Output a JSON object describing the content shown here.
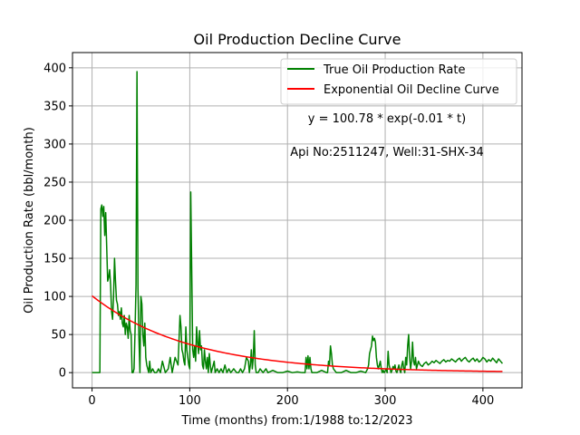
{
  "chart_data": {
    "type": "line",
    "title": "Oil Production Decline Curve",
    "xlabel": "Time (months) from:1/1988 to:12/2023",
    "ylabel": "Oil Production Rate (bbl/month)",
    "xlim": [
      -20,
      440
    ],
    "ylim": [
      -20,
      420
    ],
    "xticks": [
      0,
      100,
      200,
      300,
      400
    ],
    "yticks": [
      0,
      50,
      100,
      150,
      200,
      250,
      300,
      350,
      400
    ],
    "grid": true,
    "legend_placement": "top-right",
    "annotations": [
      "y = 100.78 * exp(-0.01 * t)",
      "Api No:2511247, Well:31-SHX-34"
    ],
    "series": [
      {
        "name": "True Oil Production Rate",
        "color": "#008000",
        "x": [
          0,
          1,
          2,
          3,
          4,
          5,
          6,
          7,
          8,
          9,
          10,
          11,
          12,
          13,
          14,
          15,
          16,
          17,
          18,
          19,
          20,
          21,
          22,
          23,
          24,
          25,
          26,
          27,
          28,
          29,
          30,
          31,
          32,
          33,
          34,
          35,
          36,
          37,
          38,
          39,
          40,
          41,
          42,
          43,
          44,
          45,
          46,
          47,
          48,
          49,
          50,
          51,
          52,
          53,
          54,
          55,
          56,
          57,
          58,
          59,
          60,
          62,
          64,
          66,
          68,
          70,
          72,
          75,
          78,
          80,
          82,
          85,
          88,
          90,
          91,
          92,
          93,
          94,
          95,
          96,
          97,
          98,
          99,
          100,
          101,
          102,
          103,
          104,
          105,
          106,
          107,
          108,
          109,
          110,
          111,
          112,
          113,
          114,
          115,
          116,
          117,
          118,
          119,
          120,
          121,
          122,
          123,
          124,
          125,
          126,
          128,
          130,
          132,
          134,
          136,
          138,
          140,
          142,
          145,
          148,
          150,
          152,
          154,
          156,
          158,
          160,
          161,
          162,
          163,
          164,
          165,
          166,
          167,
          168,
          170,
          172,
          175,
          178,
          180,
          185,
          190,
          195,
          200,
          205,
          210,
          215,
          218,
          219,
          220,
          221,
          222,
          223,
          224,
          225,
          230,
          235,
          240,
          241,
          242,
          243,
          244,
          245,
          246,
          247,
          250,
          255,
          260,
          265,
          270,
          275,
          280,
          282,
          283,
          284,
          285,
          286,
          287,
          288,
          289,
          290,
          291,
          292,
          293,
          294,
          295,
          296,
          297,
          298,
          299,
          300,
          301,
          302,
          303,
          304,
          305,
          306,
          307,
          308,
          309,
          310,
          311,
          312,
          313,
          314,
          315,
          316,
          317,
          318,
          319,
          320,
          321,
          322,
          323,
          324,
          325,
          326,
          327,
          328,
          329,
          330,
          331,
          332,
          333,
          334,
          335,
          336,
          338,
          340,
          342,
          344,
          346,
          348,
          350,
          352,
          354,
          356,
          358,
          360,
          362,
          364,
          366,
          368,
          370,
          372,
          374,
          376,
          378,
          380,
          382,
          384,
          386,
          388,
          390,
          392,
          394,
          396,
          398,
          400,
          402,
          404,
          406,
          408,
          410,
          412,
          414,
          416,
          418,
          420
        ],
        "y": [
          0,
          0,
          0,
          0,
          0,
          0,
          0,
          0,
          0,
          215,
          220,
          205,
          218,
          180,
          210,
          165,
          120,
          125,
          135,
          115,
          80,
          70,
          100,
          150,
          120,
          95,
          90,
          75,
          80,
          70,
          85,
          65,
          60,
          75,
          50,
          65,
          60,
          45,
          75,
          55,
          50,
          0,
          0,
          5,
          55,
          115,
          395,
          110,
          45,
          0,
          100,
          90,
          50,
          35,
          65,
          20,
          10,
          5,
          0,
          15,
          0,
          5,
          0,
          0,
          5,
          0,
          15,
          0,
          5,
          20,
          0,
          20,
          10,
          75,
          60,
          30,
          25,
          15,
          10,
          60,
          30,
          20,
          10,
          5,
          237,
          135,
          30,
          20,
          35,
          15,
          60,
          40,
          25,
          55,
          30,
          35,
          10,
          5,
          30,
          15,
          5,
          20,
          0,
          25,
          10,
          0,
          5,
          10,
          15,
          0,
          5,
          0,
          5,
          0,
          10,
          0,
          5,
          0,
          5,
          0,
          0,
          5,
          0,
          5,
          20,
          15,
          0,
          10,
          30,
          5,
          20,
          55,
          10,
          0,
          0,
          5,
          0,
          5,
          0,
          3,
          0,
          0,
          2,
          0,
          1,
          0,
          0,
          20,
          5,
          22,
          5,
          20,
          5,
          0,
          0,
          3,
          0,
          0,
          15,
          10,
          35,
          25,
          10,
          5,
          0,
          0,
          3,
          0,
          0,
          2,
          0,
          5,
          10,
          25,
          30,
          35,
          48,
          42,
          45,
          40,
          20,
          10,
          5,
          10,
          15,
          5,
          0,
          3,
          0,
          2,
          5,
          0,
          28,
          10,
          5,
          0,
          3,
          8,
          5,
          10,
          2,
          0,
          5,
          10,
          3,
          0,
          10,
          15,
          5,
          0,
          20,
          10,
          35,
          50,
          20,
          5,
          15,
          40,
          15,
          10,
          20,
          5,
          10,
          15,
          12,
          10,
          8,
          12,
          14,
          10,
          12,
          15,
          13,
          16,
          14,
          12,
          15,
          17,
          14,
          16,
          15,
          18,
          16,
          14,
          17,
          19,
          15,
          18,
          20,
          16,
          14,
          17,
          19,
          15,
          18,
          14,
          16,
          20,
          18,
          14,
          17,
          15,
          19,
          16,
          13,
          18,
          15,
          12
        ]
      },
      {
        "name": "Exponential Oil Decline Curve",
        "color": "#ff0000",
        "model": {
          "a": 100.78,
          "b": 0.01
        },
        "x_start": 0,
        "x_end": 420
      }
    ]
  }
}
